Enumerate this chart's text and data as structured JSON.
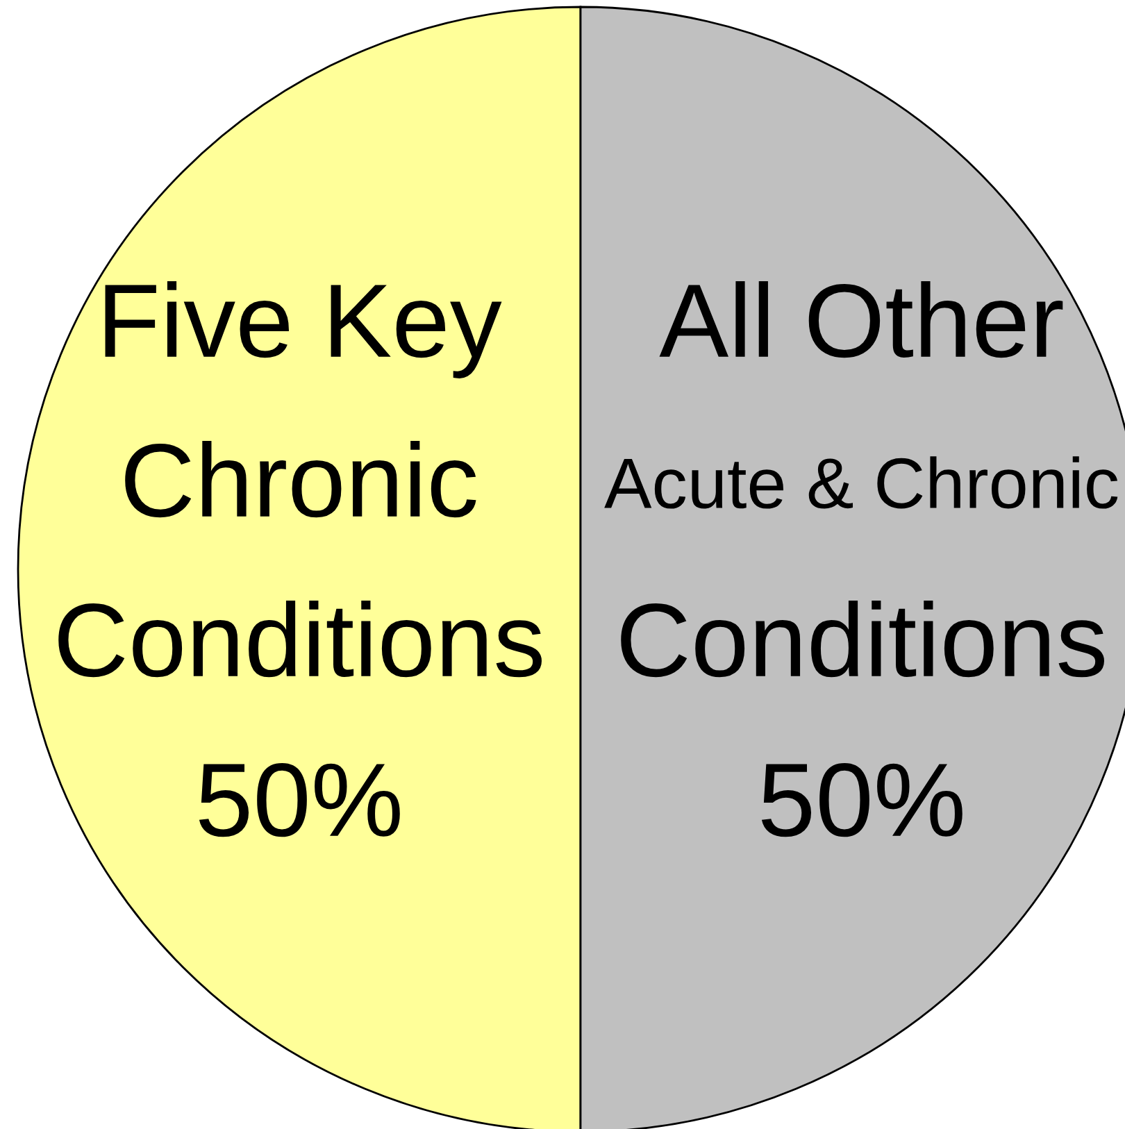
{
  "chart_data": {
    "type": "pie",
    "categories": [
      "Five Key\nChronic\nConditions",
      "All Other\nAcute & Chronic\nConditions"
    ],
    "values": [
      50,
      50
    ],
    "value_labels": [
      "50%",
      "50%"
    ],
    "colors": [
      "#ffff99",
      "#c0c0c0"
    ],
    "legend": false
  }
}
